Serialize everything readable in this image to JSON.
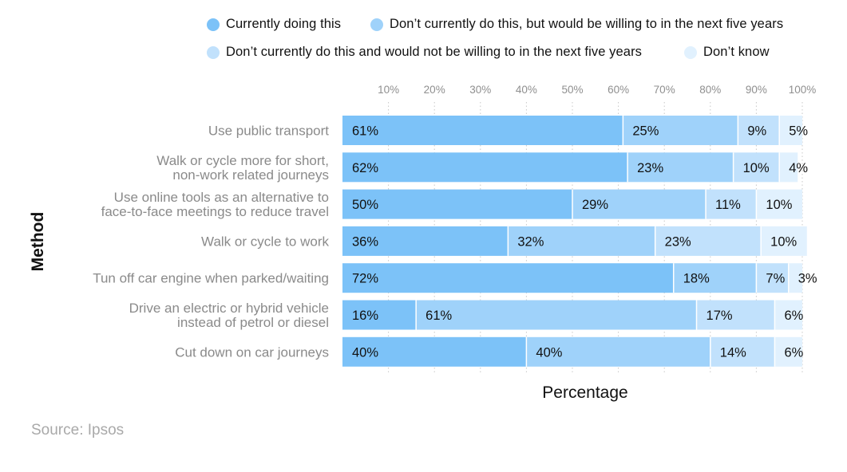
{
  "chart_data": {
    "type": "bar",
    "orientation": "horizontal",
    "stacked": true,
    "title": "",
    "xlabel": "Percentage",
    "ylabel": "Method",
    "xlim": [
      0,
      100
    ],
    "x_ticks": [
      "10%",
      "20%",
      "30%",
      "40%",
      "50%",
      "60%",
      "70%",
      "80%",
      "90%",
      "100%"
    ],
    "grid": true,
    "legend_position": "top",
    "categories": [
      "Use public transport",
      "Walk or cycle more for short, non-work related journeys",
      "Use online tools as an alternative to face-to-face meetings to reduce travel",
      "Walk or cycle to work",
      "Tun off car engine when parked/waiting",
      "Drive an electric or hybrid vehicle instead of petrol or diesel",
      "Cut down on car journeys"
    ],
    "category_lines": [
      [
        "Use public transport"
      ],
      [
        "Walk or cycle more for short,",
        "non-work related journeys"
      ],
      [
        "Use online tools as an alternative to",
        "face-to-face meetings to reduce travel"
      ],
      [
        "Walk or cycle to work"
      ],
      [
        "Tun off car engine when parked/waiting"
      ],
      [
        "Drive an electric or hybrid vehicle",
        "instead of petrol or diesel"
      ],
      [
        "Cut down on car journeys"
      ]
    ],
    "series": [
      {
        "name": "Currently doing this",
        "color": "#7cc2f8",
        "values": [
          61,
          62,
          50,
          36,
          72,
          16,
          40
        ]
      },
      {
        "name": "Don’t currently do this, but would be willing to in the next five years",
        "color": "#9fd2fa",
        "values": [
          25,
          23,
          29,
          32,
          18,
          61,
          40
        ]
      },
      {
        "name": "Don’t currently do this and would not be willing to in the next five years",
        "color": "#c1e1fc",
        "values": [
          9,
          10,
          11,
          23,
          7,
          17,
          14
        ]
      },
      {
        "name": "Don’t know",
        "color": "#e1f1fe",
        "values": [
          5,
          4,
          10,
          10,
          3,
          6,
          6
        ]
      }
    ]
  },
  "source": "Source: Ipsos"
}
